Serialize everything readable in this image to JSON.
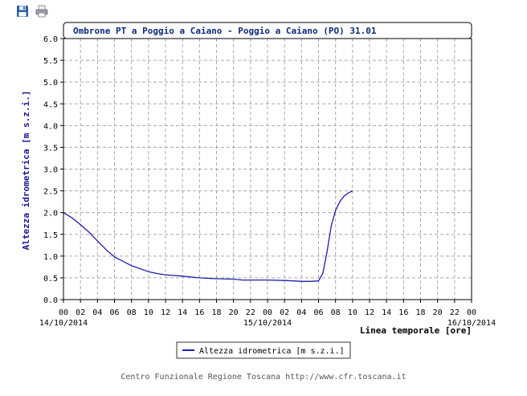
{
  "toolbar": {
    "save_icon": "floppy-disk-icon",
    "print_icon": "printer-icon"
  },
  "footer": {
    "credit": "Centro Funzionale Regione Toscana http://www.cfr.toscana.it"
  },
  "colors": {
    "series": "#1f1fb0",
    "axis_label": "#1a1a9a",
    "title": "#0a2a7a",
    "grid": "#a8a8a8"
  },
  "chart_data": {
    "type": "line",
    "title": "Ombrone PT a Poggio a Caiano - Poggio a Caiano (PO) 31.01",
    "xlabel": "Linea temporale [ore]",
    "ylabel": "Altezza idrometrica [m s.z.i.]",
    "ylim": [
      0,
      6
    ],
    "yticks": [
      "0.0",
      "0.5",
      "1.0",
      "1.5",
      "2.0",
      "2.5",
      "3.0",
      "3.5",
      "4.0",
      "4.5",
      "5.0",
      "5.5",
      "6.0"
    ],
    "xlim": [
      0,
      48
    ],
    "xticks": [
      "00",
      "02",
      "04",
      "06",
      "08",
      "10",
      "12",
      "14",
      "16",
      "18",
      "20",
      "22",
      "00",
      "02",
      "04",
      "06",
      "08",
      "10",
      "12",
      "14",
      "16",
      "18",
      "20",
      "22",
      "00"
    ],
    "date_labels": [
      {
        "hour": 0,
        "label": "14/10/2014"
      },
      {
        "hour": 24,
        "label": "15/10/2014"
      },
      {
        "hour": 48,
        "label": "16/10/2014"
      }
    ],
    "grid": true,
    "legend_position": "bottom-center",
    "series": [
      {
        "name": "Altezza idrometrica [m s.z.i.]",
        "x": [
          0,
          1,
          2,
          3,
          4,
          5,
          6,
          7,
          8,
          9,
          10,
          11,
          12,
          14,
          16,
          18,
          20,
          21,
          22,
          24,
          26,
          27,
          28,
          29,
          30,
          30.5,
          31,
          31.5,
          32,
          32.5,
          33,
          33.5,
          34
        ],
        "y": [
          2.0,
          1.88,
          1.72,
          1.55,
          1.35,
          1.15,
          0.98,
          0.88,
          0.78,
          0.71,
          0.64,
          0.6,
          0.57,
          0.54,
          0.5,
          0.48,
          0.47,
          0.45,
          0.45,
          0.45,
          0.44,
          0.43,
          0.42,
          0.42,
          0.43,
          0.6,
          1.1,
          1.7,
          2.05,
          2.25,
          2.38,
          2.45,
          2.5
        ]
      }
    ]
  }
}
